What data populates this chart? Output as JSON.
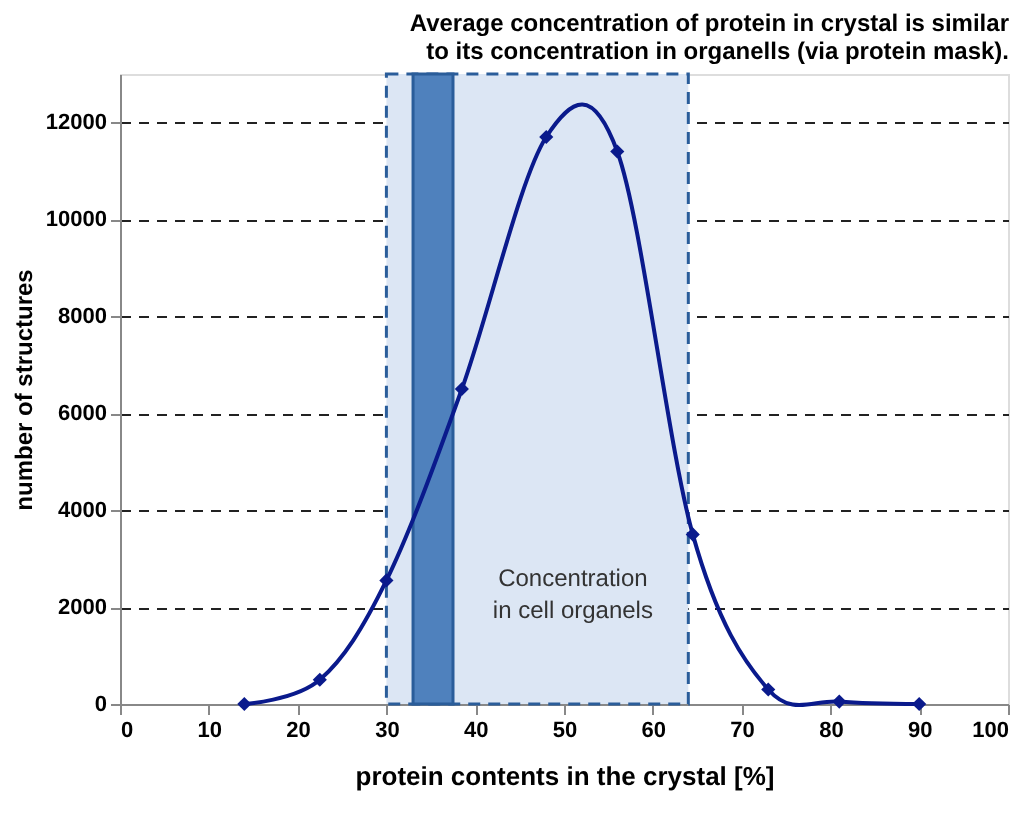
{
  "chart_data": {
    "type": "line",
    "title": [
      "Average concentration  of protein in crystal is similar",
      "to its concentration in organells (via protein mask)."
    ],
    "xlabel": "protein contents  in the crystal  [%]",
    "ylabel": "number of structures",
    "x": [
      14,
      22.5,
      30,
      38.5,
      48,
      56,
      64.5,
      73,
      81,
      90
    ],
    "series": [
      {
        "color": "#0a1a8c",
        "values": [
          0,
          500,
          2550,
          6500,
          11700,
          11400,
          3500,
          300,
          50,
          0
        ]
      }
    ],
    "xlim": [
      0,
      100
    ],
    "xticks": [
      0,
      10,
      20,
      30,
      40,
      50,
      60,
      70,
      80,
      90,
      100
    ],
    "ylim": [
      0,
      13000
    ],
    "yticks": [
      0,
      2000,
      4000,
      6000,
      8000,
      10000,
      12000
    ],
    "grid": "y",
    "marker": "diamond",
    "line_style": "solid",
    "bands": [
      {
        "axis": "x",
        "from": 30,
        "to": 64,
        "label": "Concentration\nin cell organels",
        "color": "#dce6f4"
      },
      {
        "axis": "x",
        "from": 33,
        "to": 37.5,
        "color": "#4f81bd"
      }
    ]
  }
}
